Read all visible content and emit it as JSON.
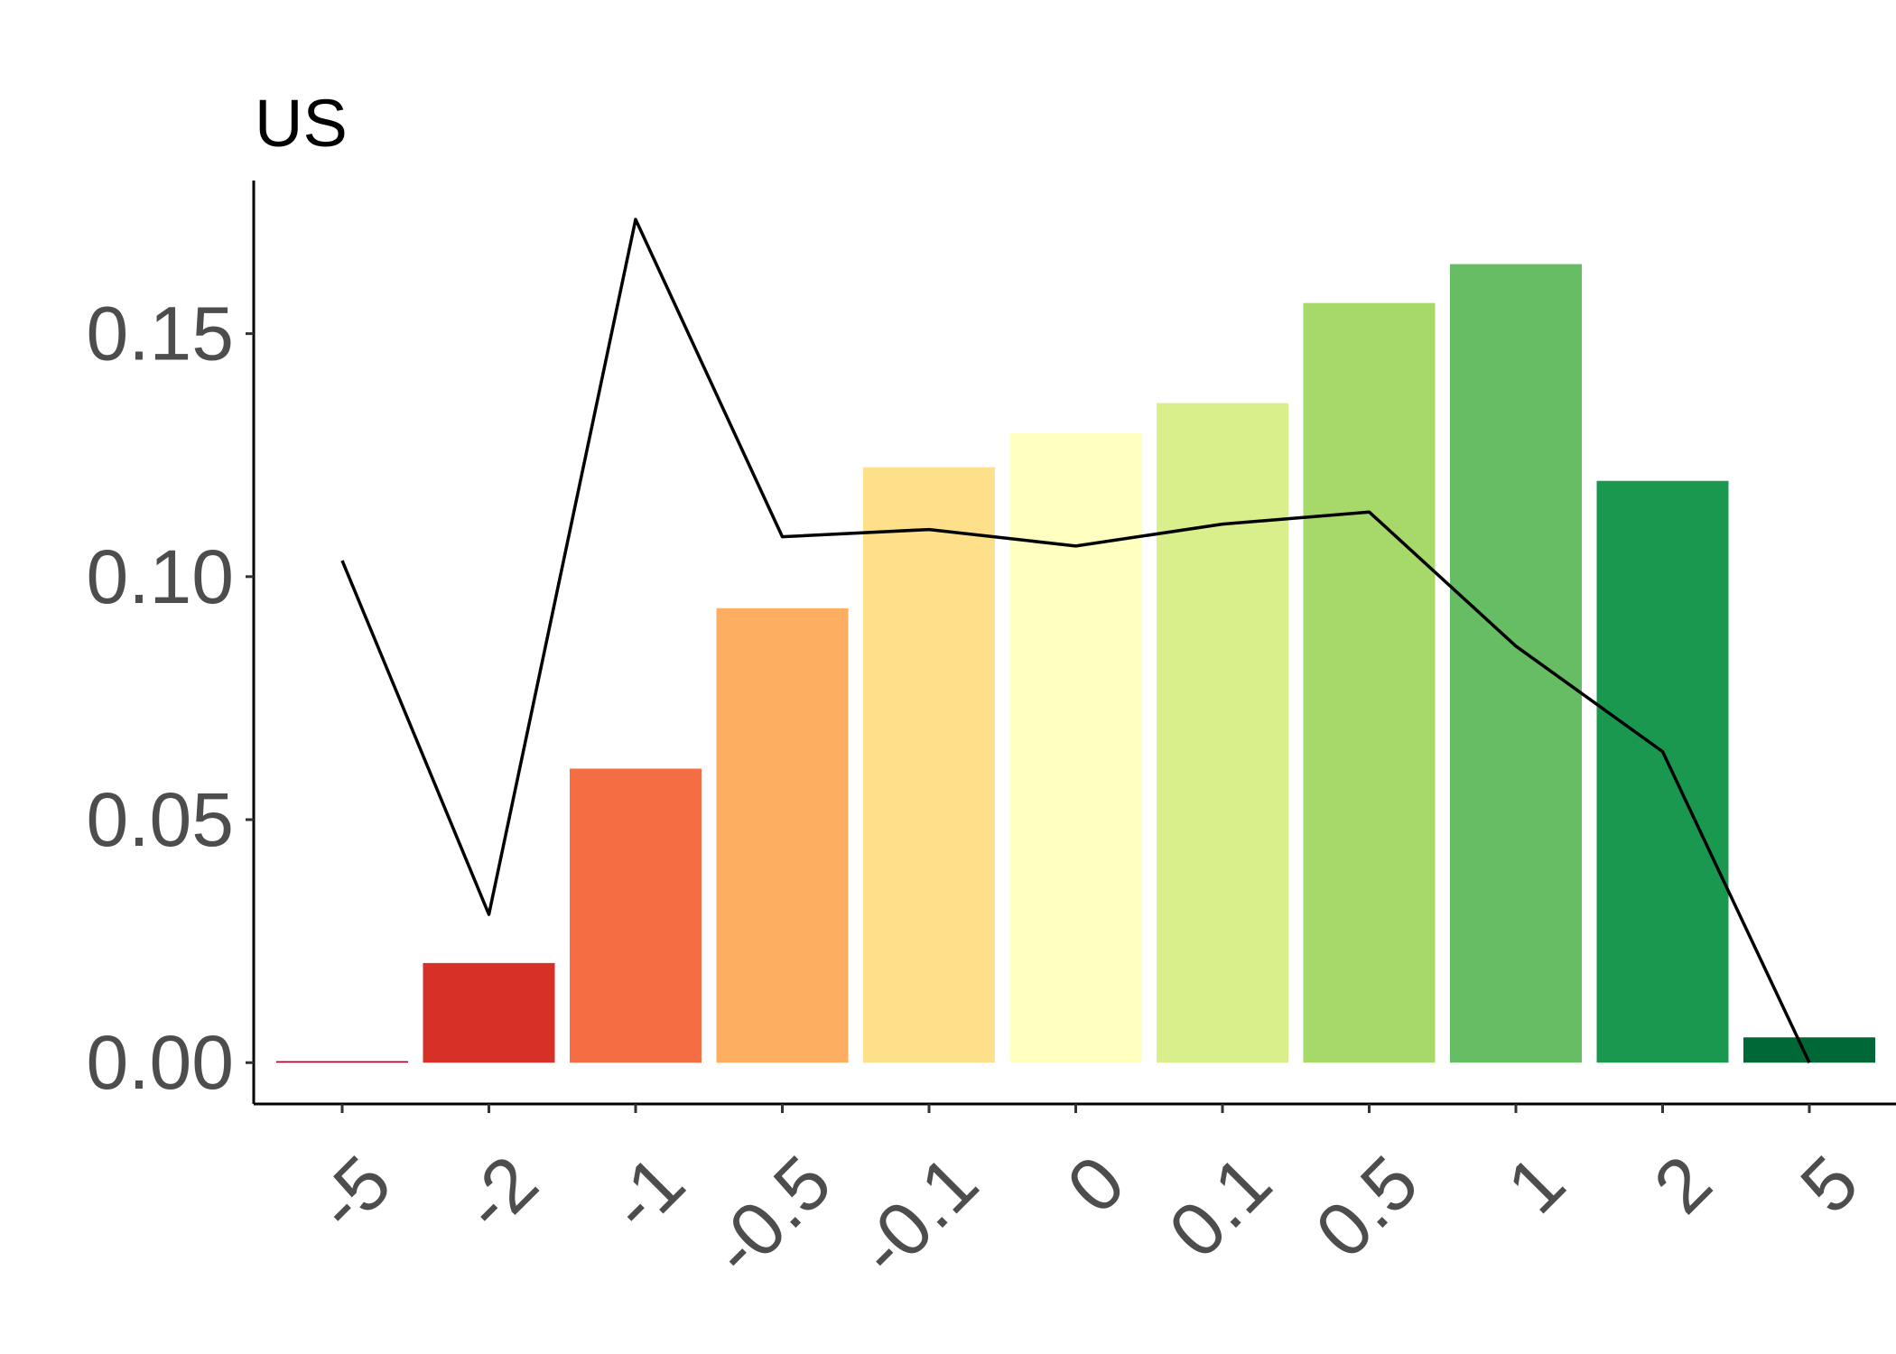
{
  "chart_data": {
    "type": "bar",
    "title": "US",
    "xlabel": "",
    "ylabel": "",
    "categories": [
      "-5",
      "-2",
      "-1",
      "-0.5",
      "-0.1",
      "0",
      "0.1",
      "0.5",
      "1",
      "2",
      "5"
    ],
    "series": [
      {
        "type": "bar",
        "values": [
          0.0003,
          0.0205,
          0.0605,
          0.0935,
          0.1225,
          0.1295,
          0.1357,
          0.1563,
          0.1643,
          0.1197,
          0.0052
        ],
        "colors": [
          "#a50026",
          "#d73027",
          "#f46d43",
          "#fdae61",
          "#fee08b",
          "#ffffbf",
          "#d9ef8b",
          "#a6d96a",
          "#66bd63",
          "#1a9850",
          "#006837"
        ]
      },
      {
        "type": "line",
        "values": [
          0.1033,
          0.0305,
          0.1735,
          0.1082,
          0.1097,
          0.1063,
          0.1108,
          0.1133,
          0.0857,
          0.064,
          0.0
        ],
        "color": "#000000"
      }
    ],
    "ylim": [
      -0.0085,
      0.1815
    ],
    "yticks": [
      0.0,
      0.05,
      0.1,
      0.15
    ],
    "ytick_labels": [
      "0.00",
      "0.05",
      "0.10",
      "0.15"
    ],
    "xtick_rotation": -45,
    "grid": false,
    "legend": "none"
  }
}
